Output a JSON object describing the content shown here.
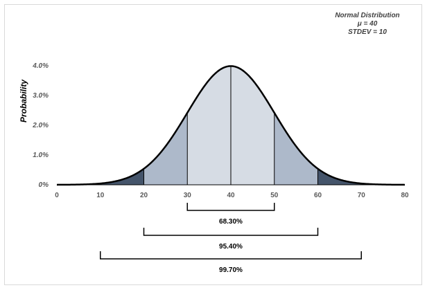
{
  "chart_data": {
    "type": "area",
    "distribution": "normal",
    "mean": 40,
    "stdev": 10,
    "legend": [
      "Normal Distribution",
      "μ = 40",
      "STDEV = 10"
    ],
    "legend_placement": "top-right",
    "xlabel": "",
    "ylabel": "Probability",
    "xlim": [
      0,
      80
    ],
    "ylim": [
      0,
      0.04
    ],
    "x_ticks": [
      "0",
      "10",
      "20",
      "30",
      "40",
      "50",
      "60",
      "70",
      "80"
    ],
    "y_ticks": [
      "0%",
      "1.0%",
      "2.0%",
      "3.0%",
      "4.0%"
    ],
    "grid": false,
    "shaded_regions": [
      {
        "from": 30,
        "to": 50,
        "color": "#d6dce4"
      },
      {
        "from": 20,
        "to": 30,
        "color": "#adb9ca"
      },
      {
        "from": 50,
        "to": 60,
        "color": "#adb9ca"
      },
      {
        "from": 0,
        "to": 20,
        "color": "#44546a"
      },
      {
        "from": 60,
        "to": 80,
        "color": "#44546a"
      }
    ],
    "divider_lines": [
      20,
      30,
      40,
      50,
      60
    ],
    "intervals": [
      {
        "from": 30,
        "to": 50,
        "label": "68.30%"
      },
      {
        "from": 20,
        "to": 60,
        "label": "95.40%"
      },
      {
        "from": 10,
        "to": 70,
        "label": "99.70%"
      }
    ]
  }
}
